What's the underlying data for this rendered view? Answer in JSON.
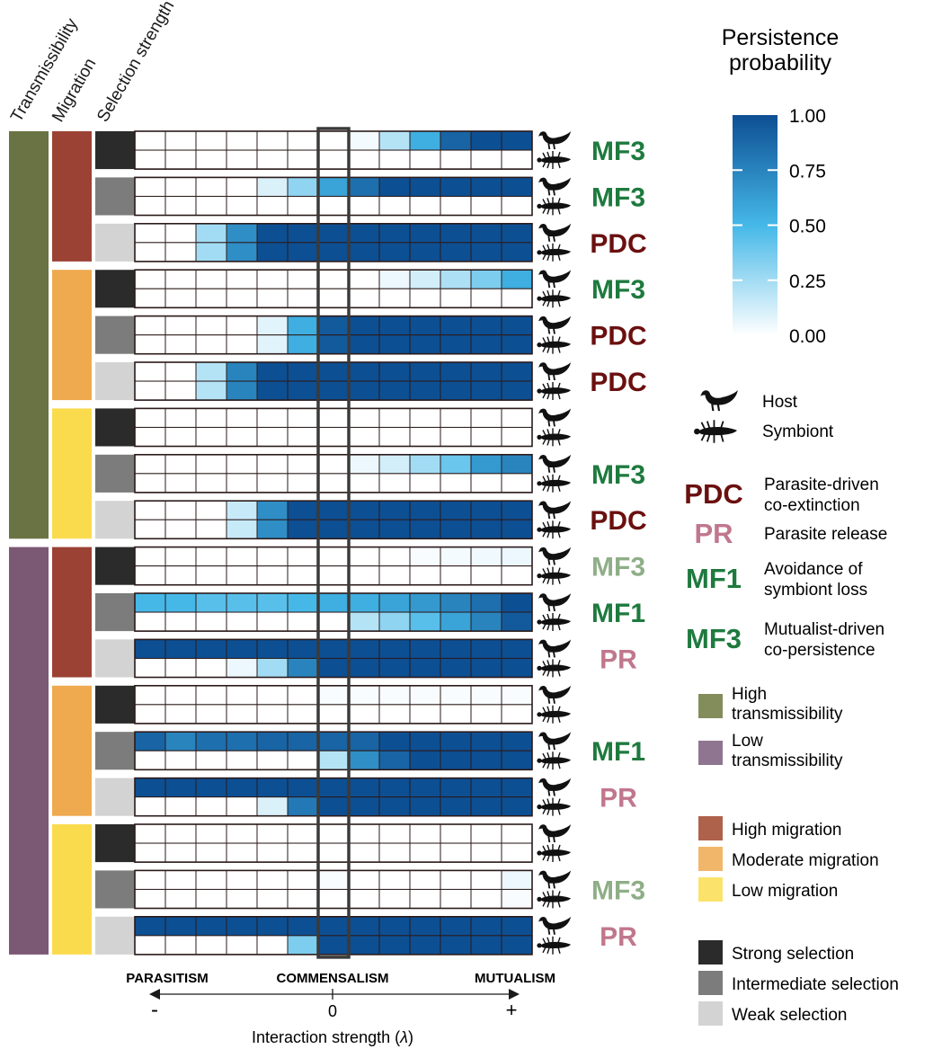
{
  "chart_data": {
    "type": "heatmap",
    "header_labels": [
      "Transmissibility",
      "Migration",
      "Selection strength"
    ],
    "colorbar": {
      "title_line1": "Persistence",
      "title_line2": "probability",
      "ticks": [
        "1.00",
        "0.75",
        "0.50",
        "0.25",
        "0.00"
      ],
      "range": [
        0,
        1
      ],
      "color_low": "#ffffff",
      "color_mid": "#45b8e8",
      "color_high": "#0d4f93"
    },
    "x_axis": {
      "regions": [
        "PARASITISM",
        "COMMENSALISM",
        "MUTUALISM"
      ],
      "ticks": [
        "-",
        "0",
        "+"
      ],
      "label": "Interaction strength (",
      "label_symbol": "λ",
      "label_close": ")",
      "n_columns": 13,
      "zero_column_index": 6
    },
    "row_order_note": "each block: row 1 = host, row 2 = symbiont",
    "blocks": [
      {
        "transmissibility": "High",
        "migration": "High",
        "selection": "Strong",
        "outcome": "MF3",
        "outcome_style": "MF3",
        "host": [
          0,
          0,
          0,
          0,
          0,
          0,
          0,
          0.03,
          0.2,
          0.55,
          0.9,
          1,
          1
        ],
        "symbiont": [
          0,
          0,
          0,
          0,
          0,
          0,
          0,
          0,
          0,
          0,
          0,
          0,
          0
        ]
      },
      {
        "transmissibility": "High",
        "migration": "High",
        "selection": "Intermediate",
        "outcome": "MF3",
        "outcome_style": "MF3",
        "host": [
          0,
          0,
          0,
          0,
          0.1,
          0.3,
          0.6,
          0.85,
          1,
          1,
          1,
          1,
          1
        ],
        "symbiont": [
          0,
          0,
          0,
          0,
          0,
          0,
          0,
          0,
          0,
          0,
          0,
          0,
          0
        ]
      },
      {
        "transmissibility": "High",
        "migration": "High",
        "selection": "Weak",
        "outcome": "PDC",
        "outcome_style": "PDC",
        "host": [
          0,
          0,
          0.25,
          0.7,
          1,
          1,
          1,
          1,
          1,
          1,
          1,
          1,
          1
        ],
        "symbiont": [
          0,
          0,
          0.25,
          0.7,
          1,
          1,
          1,
          1,
          1,
          1,
          1,
          1,
          1
        ]
      },
      {
        "transmissibility": "High",
        "migration": "Moderate",
        "selection": "Strong",
        "outcome": "MF3",
        "outcome_style": "MF3",
        "host": [
          0,
          0,
          0,
          0,
          0,
          0,
          0,
          0,
          0.05,
          0.12,
          0.22,
          0.35,
          0.55
        ],
        "symbiont": [
          0,
          0,
          0,
          0,
          0,
          0,
          0,
          0,
          0,
          0,
          0,
          0,
          0
        ]
      },
      {
        "transmissibility": "High",
        "migration": "Moderate",
        "selection": "Intermediate",
        "outcome": "PDC",
        "outcome_style": "PDC",
        "host": [
          0,
          0,
          0,
          0,
          0.08,
          0.55,
          0.95,
          1,
          1,
          1,
          1,
          1,
          1
        ],
        "symbiont": [
          0,
          0,
          0,
          0,
          0.08,
          0.55,
          0.95,
          1,
          1,
          1,
          1,
          1,
          1
        ]
      },
      {
        "transmissibility": "High",
        "migration": "Moderate",
        "selection": "Weak",
        "outcome": "PDC",
        "outcome_style": "PDC",
        "host": [
          0,
          0,
          0.2,
          0.75,
          1,
          1,
          1,
          1,
          1,
          1,
          1,
          1,
          1
        ],
        "symbiont": [
          0,
          0,
          0.2,
          0.75,
          1,
          1,
          1,
          1,
          1,
          1,
          1,
          1,
          1
        ]
      },
      {
        "transmissibility": "High",
        "migration": "Low",
        "selection": "Strong",
        "outcome": "",
        "outcome_style": "none",
        "host": [
          0,
          0,
          0,
          0,
          0,
          0,
          0,
          0,
          0,
          0,
          0,
          0,
          0
        ],
        "symbiont": [
          0,
          0,
          0,
          0,
          0,
          0,
          0,
          0,
          0,
          0,
          0,
          0,
          0
        ]
      },
      {
        "transmissibility": "High",
        "migration": "Low",
        "selection": "Intermediate",
        "outcome": "MF3",
        "outcome_style": "MF3",
        "host": [
          0,
          0,
          0,
          0,
          0,
          0,
          0,
          0.05,
          0.12,
          0.25,
          0.4,
          0.65,
          0.75
        ],
        "symbiont": [
          0,
          0,
          0,
          0,
          0,
          0,
          0,
          0,
          0,
          0,
          0,
          0,
          0
        ]
      },
      {
        "transmissibility": "High",
        "migration": "Low",
        "selection": "Weak",
        "outcome": "PDC",
        "outcome_style": "PDC",
        "host": [
          0,
          0,
          0,
          0.15,
          0.7,
          1,
          1,
          1,
          1,
          1,
          1,
          1,
          1
        ],
        "symbiont": [
          0,
          0,
          0,
          0.15,
          0.7,
          1,
          1,
          1,
          1,
          1,
          1,
          1,
          1
        ]
      },
      {
        "transmissibility": "Low",
        "migration": "High",
        "selection": "Strong",
        "outcome": "MF3",
        "outcome_style": "MF3-light",
        "host": [
          0,
          0,
          0,
          0,
          0,
          0,
          0,
          0,
          0,
          0.02,
          0.03,
          0.04,
          0.05
        ],
        "symbiont": [
          0,
          0,
          0,
          0,
          0,
          0,
          0,
          0,
          0,
          0,
          0,
          0,
          0
        ]
      },
      {
        "transmissibility": "Low",
        "migration": "High",
        "selection": "Intermediate",
        "outcome": "MF1",
        "outcome_style": "MF1",
        "host": [
          0.5,
          0.5,
          0.45,
          0.45,
          0.45,
          0.5,
          0.55,
          0.55,
          0.6,
          0.65,
          0.75,
          0.85,
          1
        ],
        "symbiont": [
          0,
          0,
          0,
          0,
          0,
          0,
          0,
          0.2,
          0.3,
          0.45,
          0.6,
          0.75,
          0.95
        ]
      },
      {
        "transmissibility": "Low",
        "migration": "High",
        "selection": "Weak",
        "outcome": "PR",
        "outcome_style": "PR",
        "host": [
          1,
          1,
          1,
          1,
          1,
          1,
          1,
          1,
          1,
          1,
          1,
          1,
          1
        ],
        "symbiont": [
          0,
          0,
          0,
          0.05,
          0.25,
          0.75,
          1,
          1,
          1,
          1,
          1,
          1,
          1
        ]
      },
      {
        "transmissibility": "Low",
        "migration": "Moderate",
        "selection": "Strong",
        "outcome": "",
        "outcome_style": "none",
        "host": [
          0,
          0,
          0,
          0,
          0,
          0,
          0.02,
          0.02,
          0.02,
          0.02,
          0.02,
          0.02,
          0.02
        ],
        "symbiont": [
          0,
          0,
          0,
          0,
          0,
          0,
          0,
          0,
          0,
          0,
          0,
          0,
          0
        ]
      },
      {
        "transmissibility": "Low",
        "migration": "Moderate",
        "selection": "Intermediate",
        "outcome": "MF1",
        "outcome_style": "MF1",
        "host": [
          0.9,
          0.75,
          0.85,
          0.85,
          0.9,
          0.9,
          0.9,
          0.9,
          1,
          1,
          1,
          1,
          1
        ],
        "symbiont": [
          0,
          0,
          0,
          0,
          0,
          0,
          0.2,
          0.7,
          0.9,
          1,
          1,
          1,
          1
        ]
      },
      {
        "transmissibility": "Low",
        "migration": "Moderate",
        "selection": "Weak",
        "outcome": "PR",
        "outcome_style": "PR",
        "host": [
          1,
          1,
          1,
          1,
          1,
          1,
          1,
          1,
          1,
          1,
          1,
          1,
          1
        ],
        "symbiont": [
          0,
          0,
          0,
          0,
          0.1,
          0.8,
          1,
          1,
          1,
          1,
          1,
          1,
          1
        ]
      },
      {
        "transmissibility": "Low",
        "migration": "Low",
        "selection": "Strong",
        "outcome": "",
        "outcome_style": "none",
        "host": [
          0,
          0,
          0,
          0,
          0,
          0,
          0,
          0,
          0,
          0,
          0,
          0,
          0
        ],
        "symbiont": [
          0,
          0,
          0,
          0,
          0,
          0,
          0,
          0,
          0,
          0,
          0,
          0,
          0
        ]
      },
      {
        "transmissibility": "Low",
        "migration": "Low",
        "selection": "Intermediate",
        "outcome": "MF3",
        "outcome_style": "MF3-light",
        "host": [
          0,
          0,
          0,
          0,
          0,
          0,
          0.02,
          0,
          0,
          0,
          0,
          0,
          0.05
        ],
        "symbiont": [
          0,
          0,
          0,
          0,
          0,
          0,
          0,
          0,
          0,
          0,
          0,
          0,
          0.02
        ]
      },
      {
        "transmissibility": "Low",
        "migration": "Low",
        "selection": "Weak",
        "outcome": "PR",
        "outcome_style": "PR",
        "host": [
          1,
          1,
          1,
          1,
          1,
          1,
          1,
          1,
          1,
          1,
          1,
          1,
          1
        ],
        "symbiont": [
          0,
          0,
          0,
          0,
          0,
          0.35,
          1,
          1,
          1,
          1,
          1,
          1,
          1
        ]
      }
    ]
  },
  "legend": {
    "host_label": "Host",
    "symbiont_label": "Symbiont",
    "outcomes": [
      {
        "code": "PDC",
        "line1": "Parasite-driven",
        "line2": "co-extinction",
        "style": "PDC"
      },
      {
        "code": "PR",
        "line1": "Parasite release",
        "line2": "",
        "style": "PR"
      },
      {
        "code": "MF1",
        "line1": "Avoidance of",
        "line2": "symbiont loss",
        "style": "MF1"
      },
      {
        "code": "MF3",
        "line1": "Mutualist-driven",
        "line2": "co-persistence",
        "style": "MF3"
      }
    ],
    "transmissibility": [
      {
        "line1": "High",
        "line2": "transmissibility",
        "color": "#838d5c"
      },
      {
        "line1": "Low",
        "line2": "transmissibility",
        "color": "#8f7590"
      }
    ],
    "migration": [
      {
        "label": "High migration",
        "color": "#ae614b"
      },
      {
        "label": "Moderate migration",
        "color": "#f2b66a"
      },
      {
        "label": "Low migration",
        "color": "#fbe36b"
      }
    ],
    "selection": [
      {
        "label": "Strong selection",
        "color": "#2b2b2b"
      },
      {
        "label": "Intermediate selection",
        "color": "#7c7c7c"
      },
      {
        "label": "Weak selection",
        "color": "#d3d3d3"
      }
    ]
  },
  "colors": {
    "transmissibility": {
      "High": "#6a7343",
      "Low": "#7b5874"
    },
    "migration": {
      "High": "#9b4234",
      "Moderate": "#efa94e",
      "Low": "#fbdb4e"
    },
    "selection": {
      "Strong": "#2b2b2b",
      "Intermediate": "#7c7c7c",
      "Weak": "#d3d3d3"
    },
    "outcome_text": {
      "MF3": "#1e7a3e",
      "MF1": "#1e7a3e",
      "MF3-light": "#8fae87",
      "PDC": "#6b0f0f",
      "PR": "#c0778d"
    },
    "grid_line": "#2b1a1a"
  }
}
